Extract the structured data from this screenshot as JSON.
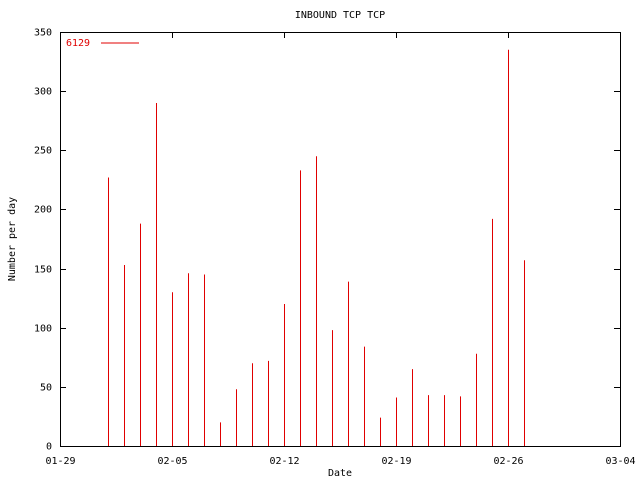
{
  "chart_data": {
    "type": "impulse",
    "title": "INBOUND TCP TCP",
    "x_label": "Date",
    "y_label": "Number per day",
    "x": [
      "02-01",
      "02-02",
      "02-03",
      "02-04",
      "02-05",
      "02-06",
      "02-07",
      "02-08",
      "02-09",
      "02-10",
      "02-11",
      "02-12",
      "02-13",
      "02-14",
      "02-15",
      "02-16",
      "02-17",
      "02-18",
      "02-19",
      "02-20",
      "02-21",
      "02-22",
      "02-23",
      "02-24",
      "02-25",
      "02-26",
      "02-27"
    ],
    "series": [
      {
        "name": "6129",
        "color": "#e00000",
        "values": [
          227,
          153,
          188,
          290,
          130,
          146,
          145,
          20,
          48,
          70,
          72,
          120,
          233,
          245,
          98,
          139,
          84,
          24,
          41,
          65,
          43,
          43,
          42,
          78,
          192,
          335,
          157
        ]
      }
    ],
    "xlim": [
      "01-29",
      "03-04"
    ],
    "xticks": [
      "01-29",
      "02-05",
      "02-12",
      "02-19",
      "02-26",
      "03-04"
    ],
    "ylim": [
      0,
      350
    ],
    "yticks": [
      0,
      50,
      100,
      150,
      200,
      250,
      300,
      350
    ],
    "legend": "top-left"
  }
}
